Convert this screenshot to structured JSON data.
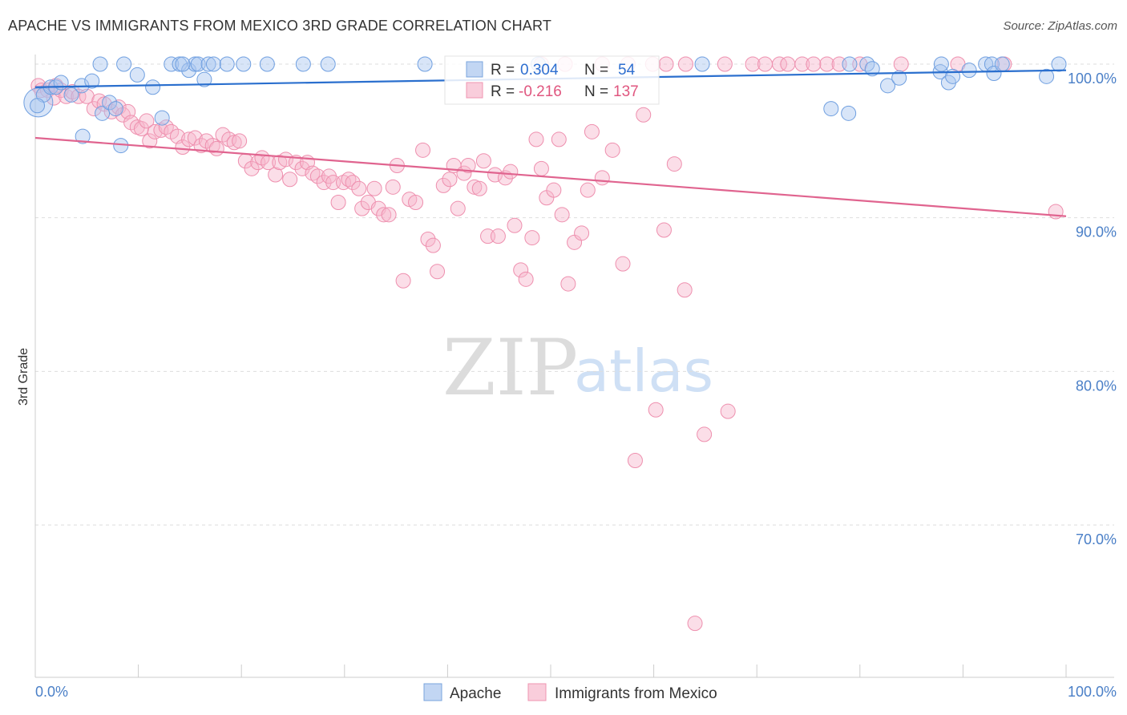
{
  "header": {
    "title": "APACHE VS IMMIGRANTS FROM MEXICO 3RD GRADE CORRELATION CHART",
    "source": "Source: ZipAtlas.com"
  },
  "watermark": {
    "zip": "ZIP",
    "atlas": "atlas"
  },
  "legend": {
    "r_label": "R =",
    "n_label": "N =",
    "apache": {
      "r": "0.304",
      "n": "54"
    },
    "mexico": {
      "r": "-0.216",
      "n": "137"
    }
  },
  "bottom_legend": {
    "apache": "Apache",
    "mexico": "Immigrants from Mexico"
  },
  "chart_data": {
    "type": "scatter",
    "title": "APACHE VS IMMIGRANTS FROM MEXICO 3RD GRADE CORRELATION CHART",
    "xlabel": "",
    "ylabel": "3rd Grade",
    "xlim": [
      0,
      100
    ],
    "ylim": [
      60.5,
      102
    ],
    "x_tick_labels": [
      "0.0%",
      "100.0%"
    ],
    "y_ticks": [
      70,
      80,
      90,
      100
    ],
    "y_tick_labels": [
      "70.0%",
      "80.0%",
      "90.0%",
      "100.0%"
    ],
    "colors": {
      "apache": "#6f9fe0",
      "apache_line": "#2a6fce",
      "mexico": "#f08cab",
      "mexico_line": "#e0648f"
    },
    "series": [
      {
        "name": "Apache",
        "trend": {
          "x": [
            0,
            100
          ],
          "y": [
            98.5,
            99.6
          ]
        },
        "points": [
          [
            0.3,
            97.5
          ],
          [
            0.8,
            98.0
          ],
          [
            1.5,
            98.5
          ],
          [
            2.0,
            98.5
          ],
          [
            2.5,
            98.8
          ],
          [
            3.5,
            98.0
          ],
          [
            4.5,
            98.6
          ],
          [
            4.6,
            95.3
          ],
          [
            5.5,
            98.9
          ],
          [
            6.3,
            100.0
          ],
          [
            6.5,
            96.8
          ],
          [
            7.2,
            97.5
          ],
          [
            7.8,
            97.1
          ],
          [
            8.3,
            94.7
          ],
          [
            8.6,
            100.0
          ],
          [
            9.9,
            99.3
          ],
          [
            11.4,
            98.5
          ],
          [
            12.3,
            96.5
          ],
          [
            13.2,
            100.0
          ],
          [
            14.0,
            100.0
          ],
          [
            14.9,
            99.6
          ],
          [
            15.5,
            100.0
          ],
          [
            15.8,
            100.0
          ],
          [
            16.4,
            99.0
          ],
          [
            16.8,
            100.0
          ],
          [
            17.3,
            100.0
          ],
          [
            18.6,
            100.0
          ],
          [
            20.2,
            100.0
          ],
          [
            22.5,
            100.0
          ],
          [
            26.0,
            100.0
          ],
          [
            28.4,
            100.0
          ],
          [
            37.8,
            100.0
          ],
          [
            48.8,
            100.0
          ],
          [
            64.7,
            100.0
          ],
          [
            77.2,
            97.1
          ],
          [
            78.9,
            96.8
          ],
          [
            79.0,
            100.0
          ],
          [
            80.7,
            100.0
          ],
          [
            81.2,
            99.7
          ],
          [
            82.7,
            98.6
          ],
          [
            83.8,
            99.1
          ],
          [
            87.8,
            99.5
          ],
          [
            87.9,
            100.0
          ],
          [
            88.6,
            98.8
          ],
          [
            89.0,
            99.2
          ],
          [
            90.6,
            99.6
          ],
          [
            92.2,
            100.0
          ],
          [
            92.8,
            100.0
          ],
          [
            93.0,
            99.4
          ],
          [
            93.8,
            100.0
          ],
          [
            98.1,
            99.2
          ],
          [
            99.3,
            100.0
          ],
          [
            0.2,
            97.3
          ],
          [
            14.3,
            100.0
          ]
        ]
      },
      {
        "name": "Immigrants from Mexico",
        "trend": {
          "x": [
            0,
            100
          ],
          "y": [
            95.2,
            90.1
          ]
        },
        "points": [
          [
            0.3,
            98.6
          ],
          [
            0.6,
            98.3
          ],
          [
            1.2,
            98.3
          ],
          [
            1.8,
            97.8
          ],
          [
            2.0,
            98.6
          ],
          [
            2.5,
            98.3
          ],
          [
            3.0,
            97.9
          ],
          [
            3.6,
            98.2
          ],
          [
            4.2,
            97.9
          ],
          [
            5.0,
            97.9
          ],
          [
            5.7,
            97.1
          ],
          [
            6.2,
            97.6
          ],
          [
            6.7,
            97.4
          ],
          [
            7.4,
            96.9
          ],
          [
            8.1,
            97.2
          ],
          [
            8.5,
            96.7
          ],
          [
            9.0,
            96.9
          ],
          [
            9.3,
            96.2
          ],
          [
            9.9,
            95.9
          ],
          [
            10.3,
            95.8
          ],
          [
            10.8,
            96.3
          ],
          [
            11.1,
            95.0
          ],
          [
            11.6,
            95.6
          ],
          [
            12.2,
            95.7
          ],
          [
            12.7,
            95.9
          ],
          [
            13.2,
            95.6
          ],
          [
            13.8,
            95.3
          ],
          [
            14.3,
            94.6
          ],
          [
            14.9,
            95.1
          ],
          [
            15.5,
            95.2
          ],
          [
            16.1,
            94.7
          ],
          [
            16.6,
            95.0
          ],
          [
            17.2,
            94.7
          ],
          [
            17.6,
            94.5
          ],
          [
            18.2,
            95.4
          ],
          [
            18.8,
            95.1
          ],
          [
            19.3,
            94.9
          ],
          [
            19.8,
            95.0
          ],
          [
            20.4,
            93.7
          ],
          [
            21.0,
            93.2
          ],
          [
            21.6,
            93.6
          ],
          [
            22.0,
            93.9
          ],
          [
            22.6,
            93.6
          ],
          [
            23.3,
            92.8
          ],
          [
            23.7,
            93.6
          ],
          [
            24.3,
            93.8
          ],
          [
            24.7,
            92.5
          ],
          [
            25.3,
            93.6
          ],
          [
            25.9,
            93.2
          ],
          [
            26.4,
            93.6
          ],
          [
            26.9,
            92.9
          ],
          [
            27.4,
            92.7
          ],
          [
            28.0,
            92.3
          ],
          [
            28.5,
            92.7
          ],
          [
            28.9,
            92.3
          ],
          [
            29.4,
            91.0
          ],
          [
            29.9,
            92.3
          ],
          [
            30.4,
            92.5
          ],
          [
            30.8,
            92.3
          ],
          [
            31.4,
            91.9
          ],
          [
            31.7,
            90.6
          ],
          [
            32.3,
            91.0
          ],
          [
            32.9,
            91.9
          ],
          [
            33.3,
            90.6
          ],
          [
            33.8,
            90.2
          ],
          [
            34.3,
            90.2
          ],
          [
            34.7,
            92.0
          ],
          [
            35.1,
            93.4
          ],
          [
            35.7,
            85.9
          ],
          [
            36.3,
            91.2
          ],
          [
            36.9,
            91.0
          ],
          [
            37.6,
            94.4
          ],
          [
            38.1,
            88.6
          ],
          [
            38.6,
            88.2
          ],
          [
            39.0,
            86.5
          ],
          [
            39.6,
            92.1
          ],
          [
            40.2,
            92.5
          ],
          [
            40.6,
            93.4
          ],
          [
            41.0,
            90.6
          ],
          [
            41.6,
            92.9
          ],
          [
            42.0,
            93.4
          ],
          [
            42.6,
            92.0
          ],
          [
            43.1,
            91.9
          ],
          [
            43.5,
            93.7
          ],
          [
            43.9,
            88.8
          ],
          [
            44.6,
            92.8
          ],
          [
            44.9,
            88.8
          ],
          [
            45.6,
            92.6
          ],
          [
            46.1,
            93.0
          ],
          [
            46.5,
            89.5
          ],
          [
            47.1,
            86.6
          ],
          [
            47.6,
            86.0
          ],
          [
            48.2,
            88.7
          ],
          [
            48.6,
            95.1
          ],
          [
            49.1,
            93.2
          ],
          [
            49.6,
            91.3
          ],
          [
            50.3,
            91.8
          ],
          [
            50.8,
            95.1
          ],
          [
            51.1,
            90.2
          ],
          [
            51.7,
            85.7
          ],
          [
            52.3,
            88.4
          ],
          [
            53.0,
            89.0
          ],
          [
            53.6,
            91.8
          ],
          [
            54.0,
            95.6
          ],
          [
            55.0,
            92.6
          ],
          [
            56.0,
            94.4
          ],
          [
            57.0,
            87.0
          ],
          [
            59.0,
            96.7
          ],
          [
            61.0,
            89.2
          ],
          [
            62.0,
            93.5
          ],
          [
            63.0,
            85.3
          ],
          [
            64.0,
            63.6
          ],
          [
            61.2,
            100.0
          ],
          [
            66.9,
            100.0
          ],
          [
            69.6,
            100.0
          ],
          [
            72.2,
            100.0
          ],
          [
            74.4,
            100.0
          ],
          [
            76.8,
            100.0
          ],
          [
            78.0,
            100.0
          ],
          [
            80.0,
            100.0
          ],
          [
            84.0,
            100.0
          ],
          [
            89.5,
            100.0
          ],
          [
            94.0,
            100.0
          ],
          [
            99.0,
            90.4
          ],
          [
            60.2,
            77.5
          ],
          [
            64.9,
            75.9
          ],
          [
            67.2,
            77.4
          ],
          [
            58.2,
            74.2
          ],
          [
            49.1,
            100.0
          ],
          [
            51.4,
            100.0
          ],
          [
            55.0,
            100.0
          ],
          [
            57.5,
            100.0
          ],
          [
            59.9,
            100.0
          ],
          [
            63.1,
            100.0
          ],
          [
            70.8,
            100.0
          ],
          [
            73.0,
            100.0
          ],
          [
            75.5,
            100.0
          ]
        ]
      }
    ]
  }
}
